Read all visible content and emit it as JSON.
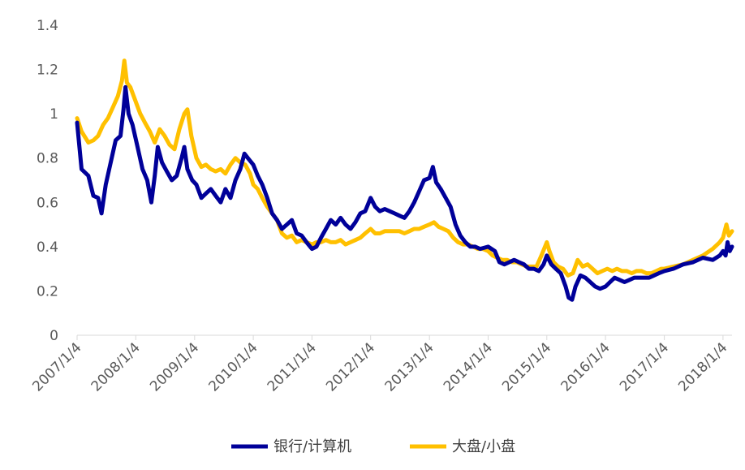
{
  "chart_data": {
    "type": "line",
    "title": "",
    "xlabel": "",
    "ylabel": "",
    "ylim": [
      0,
      1.4
    ],
    "yticks": [
      "0",
      "0.2",
      "0.4",
      "0.6",
      "0.8",
      "1",
      "1.2",
      "1.4"
    ],
    "xlim": [
      "2007/1/4",
      "2018/3/1"
    ],
    "xticks": [
      "2007/1/4",
      "2008/1/4",
      "2009/1/4",
      "2010/1/4",
      "2011/1/4",
      "2012/1/4",
      "2013/1/4",
      "2014/1/4",
      "2015/1/4",
      "2016/1/4",
      "2017/1/4",
      "2018/1/4"
    ],
    "grid": false,
    "legend": "bottom",
    "series": [
      {
        "name": "银行/计算机",
        "color": "#000099",
        "points": [
          [
            "2007/1/4",
            0.96
          ],
          [
            "2007/2/1",
            0.75
          ],
          [
            "2007/3/15",
            0.72
          ],
          [
            "2007/4/15",
            0.63
          ],
          [
            "2007/5/15",
            0.62
          ],
          [
            "2007/6/5",
            0.55
          ],
          [
            "2007/7/1",
            0.68
          ],
          [
            "2007/8/1",
            0.78
          ],
          [
            "2007/9/1",
            0.88
          ],
          [
            "2007/10/1",
            0.9
          ],
          [
            "2007/10/20",
            1.02
          ],
          [
            "2007/11/1",
            1.12
          ],
          [
            "2007/11/20",
            1.0
          ],
          [
            "2007/12/15",
            0.95
          ],
          [
            "2008/1/15",
            0.85
          ],
          [
            "2008/2/15",
            0.75
          ],
          [
            "2008/3/15",
            0.7
          ],
          [
            "2008/4/10",
            0.6
          ],
          [
            "2008/5/1",
            0.72
          ],
          [
            "2008/5/20",
            0.85
          ],
          [
            "2008/6/15",
            0.78
          ],
          [
            "2008/7/15",
            0.74
          ],
          [
            "2008/8/15",
            0.7
          ],
          [
            "2008/9/15",
            0.72
          ],
          [
            "2008/10/15",
            0.8
          ],
          [
            "2008/11/1",
            0.85
          ],
          [
            "2008/11/20",
            0.75
          ],
          [
            "2008/12/20",
            0.7
          ],
          [
            "2009/1/15",
            0.68
          ],
          [
            "2009/2/15",
            0.62
          ],
          [
            "2009/3/15",
            0.64
          ],
          [
            "2009/4/15",
            0.66
          ],
          [
            "2009/5/15",
            0.63
          ],
          [
            "2009/6/15",
            0.6
          ],
          [
            "2009/7/15",
            0.66
          ],
          [
            "2009/8/15",
            0.62
          ],
          [
            "2009/9/15",
            0.7
          ],
          [
            "2009/10/15",
            0.75
          ],
          [
            "2009/11/10",
            0.82
          ],
          [
            "2009/12/1",
            0.8
          ],
          [
            "2010/1/4",
            0.77
          ],
          [
            "2010/2/1",
            0.72
          ],
          [
            "2010/3/1",
            0.68
          ],
          [
            "2010/4/1",
            0.62
          ],
          [
            "2010/5/1",
            0.55
          ],
          [
            "2010/6/1",
            0.52
          ],
          [
            "2010/7/1",
            0.48
          ],
          [
            "2010/8/1",
            0.5
          ],
          [
            "2010/9/1",
            0.52
          ],
          [
            "2010/10/1",
            0.46
          ],
          [
            "2010/11/1",
            0.45
          ],
          [
            "2010/12/1",
            0.42
          ],
          [
            "2011/1/4",
            0.39
          ],
          [
            "2011/2/1",
            0.4
          ],
          [
            "2011/3/1",
            0.44
          ],
          [
            "2011/4/1",
            0.48
          ],
          [
            "2011/5/1",
            0.52
          ],
          [
            "2011/6/1",
            0.5
          ],
          [
            "2011/7/1",
            0.53
          ],
          [
            "2011/8/1",
            0.5
          ],
          [
            "2011/9/1",
            0.48
          ],
          [
            "2011/10/1",
            0.51
          ],
          [
            "2011/11/1",
            0.55
          ],
          [
            "2011/12/1",
            0.56
          ],
          [
            "2012/1/4",
            0.62
          ],
          [
            "2012/2/1",
            0.58
          ],
          [
            "2012/3/1",
            0.56
          ],
          [
            "2012/4/1",
            0.57
          ],
          [
            "2012/5/1",
            0.56
          ],
          [
            "2012/6/1",
            0.55
          ],
          [
            "2012/7/1",
            0.54
          ],
          [
            "2012/8/1",
            0.53
          ],
          [
            "2012/9/1",
            0.56
          ],
          [
            "2012/10/1",
            0.6
          ],
          [
            "2012/11/1",
            0.65
          ],
          [
            "2012/12/1",
            0.7
          ],
          [
            "2013/1/4",
            0.71
          ],
          [
            "2013/1/25",
            0.76
          ],
          [
            "2013/2/15",
            0.69
          ],
          [
            "2013/3/15",
            0.66
          ],
          [
            "2013/4/15",
            0.62
          ],
          [
            "2013/5/15",
            0.58
          ],
          [
            "2013/6/15",
            0.5
          ],
          [
            "2013/7/15",
            0.45
          ],
          [
            "2013/8/15",
            0.42
          ],
          [
            "2013/9/15",
            0.4
          ],
          [
            "2013/10/15",
            0.4
          ],
          [
            "2013/11/15",
            0.39
          ],
          [
            "2014/1/4",
            0.4
          ],
          [
            "2014/2/15",
            0.38
          ],
          [
            "2014/3/15",
            0.33
          ],
          [
            "2014/4/15",
            0.32
          ],
          [
            "2014/5/15",
            0.33
          ],
          [
            "2014/6/15",
            0.34
          ],
          [
            "2014/7/15",
            0.33
          ],
          [
            "2014/8/15",
            0.32
          ],
          [
            "2014/9/15",
            0.3
          ],
          [
            "2014/10/15",
            0.3
          ],
          [
            "2014/11/15",
            0.29
          ],
          [
            "2014/12/15",
            0.32
          ],
          [
            "2015/1/4",
            0.36
          ],
          [
            "2015/2/1",
            0.32
          ],
          [
            "2015/3/1",
            0.3
          ],
          [
            "2015/4/1",
            0.28
          ],
          [
            "2015/5/1",
            0.22
          ],
          [
            "2015/5/20",
            0.17
          ],
          [
            "2015/6/10",
            0.16
          ],
          [
            "2015/7/1",
            0.22
          ],
          [
            "2015/8/1",
            0.27
          ],
          [
            "2015/9/1",
            0.26
          ],
          [
            "2015/10/1",
            0.24
          ],
          [
            "2015/11/1",
            0.22
          ],
          [
            "2015/12/1",
            0.21
          ],
          [
            "2016/1/4",
            0.22
          ],
          [
            "2016/2/1",
            0.24
          ],
          [
            "2016/3/1",
            0.26
          ],
          [
            "2016/4/1",
            0.25
          ],
          [
            "2016/5/1",
            0.24
          ],
          [
            "2016/6/1",
            0.25
          ],
          [
            "2016/7/1",
            0.26
          ],
          [
            "2016/8/1",
            0.26
          ],
          [
            "2016/9/1",
            0.26
          ],
          [
            "2016/10/1",
            0.26
          ],
          [
            "2016/11/1",
            0.27
          ],
          [
            "2016/12/1",
            0.28
          ],
          [
            "2017/1/4",
            0.29
          ],
          [
            "2017/3/1",
            0.3
          ],
          [
            "2017/5/1",
            0.32
          ],
          [
            "2017/7/1",
            0.33
          ],
          [
            "2017/9/1",
            0.35
          ],
          [
            "2017/11/1",
            0.34
          ],
          [
            "2017/12/15",
            0.36
          ],
          [
            "2018/1/4",
            0.38
          ],
          [
            "2018/1/20",
            0.36
          ],
          [
            "2018/2/1",
            0.42
          ],
          [
            "2018/2/15",
            0.38
          ],
          [
            "2018/3/1",
            0.4
          ]
        ]
      },
      {
        "name": "大盘/小盘",
        "color": "#FFC000",
        "points": [
          [
            "2007/1/4",
            0.98
          ],
          [
            "2007/2/1",
            0.92
          ],
          [
            "2007/3/15",
            0.87
          ],
          [
            "2007/4/15",
            0.88
          ],
          [
            "2007/5/15",
            0.9
          ],
          [
            "2007/6/15",
            0.95
          ],
          [
            "2007/7/15",
            0.98
          ],
          [
            "2007/8/15",
            1.03
          ],
          [
            "2007/9/15",
            1.08
          ],
          [
            "2007/10/10",
            1.15
          ],
          [
            "2007/10/25",
            1.24
          ],
          [
            "2007/11/10",
            1.14
          ],
          [
            "2007/12/1",
            1.12
          ],
          [
            "2008/1/1",
            1.06
          ],
          [
            "2008/2/1",
            1.0
          ],
          [
            "2008/3/1",
            0.96
          ],
          [
            "2008/4/1",
            0.92
          ],
          [
            "2008/5/1",
            0.87
          ],
          [
            "2008/6/1",
            0.93
          ],
          [
            "2008/7/1",
            0.9
          ],
          [
            "2008/8/1",
            0.86
          ],
          [
            "2008/9/1",
            0.84
          ],
          [
            "2008/10/1",
            0.93
          ],
          [
            "2008/11/1",
            1.0
          ],
          [
            "2008/11/20",
            1.02
          ],
          [
            "2008/12/15",
            0.9
          ],
          [
            "2009/1/15",
            0.8
          ],
          [
            "2009/2/15",
            0.76
          ],
          [
            "2009/3/15",
            0.77
          ],
          [
            "2009/4/15",
            0.75
          ],
          [
            "2009/5/15",
            0.74
          ],
          [
            "2009/6/15",
            0.75
          ],
          [
            "2009/7/15",
            0.73
          ],
          [
            "2009/8/15",
            0.77
          ],
          [
            "2009/9/15",
            0.8
          ],
          [
            "2009/10/15",
            0.78
          ],
          [
            "2009/11/15",
            0.77
          ],
          [
            "2009/12/15",
            0.73
          ],
          [
            "2010/1/4",
            0.68
          ],
          [
            "2010/2/1",
            0.66
          ],
          [
            "2010/3/1",
            0.62
          ],
          [
            "2010/4/1",
            0.58
          ],
          [
            "2010/5/1",
            0.55
          ],
          [
            "2010/6/1",
            0.52
          ],
          [
            "2010/7/1",
            0.46
          ],
          [
            "2010/8/1",
            0.44
          ],
          [
            "2010/9/1",
            0.45
          ],
          [
            "2010/10/1",
            0.42
          ],
          [
            "2010/11/1",
            0.43
          ],
          [
            "2010/12/1",
            0.42
          ],
          [
            "2011/1/4",
            0.41
          ],
          [
            "2011/2/1",
            0.42
          ],
          [
            "2011/3/1",
            0.42
          ],
          [
            "2011/4/1",
            0.43
          ],
          [
            "2011/5/1",
            0.42
          ],
          [
            "2011/6/1",
            0.42
          ],
          [
            "2011/7/1",
            0.43
          ],
          [
            "2011/8/1",
            0.41
          ],
          [
            "2011/9/1",
            0.42
          ],
          [
            "2011/10/1",
            0.43
          ],
          [
            "2011/11/1",
            0.44
          ],
          [
            "2011/12/1",
            0.46
          ],
          [
            "2012/1/4",
            0.48
          ],
          [
            "2012/2/1",
            0.46
          ],
          [
            "2012/3/1",
            0.46
          ],
          [
            "2012/4/1",
            0.47
          ],
          [
            "2012/5/1",
            0.47
          ],
          [
            "2012/6/1",
            0.47
          ],
          [
            "2012/7/1",
            0.47
          ],
          [
            "2012/8/1",
            0.46
          ],
          [
            "2012/9/1",
            0.47
          ],
          [
            "2012/10/1",
            0.48
          ],
          [
            "2012/11/1",
            0.48
          ],
          [
            "2012/12/1",
            0.49
          ],
          [
            "2013/1/4",
            0.5
          ],
          [
            "2013/2/1",
            0.51
          ],
          [
            "2013/3/1",
            0.49
          ],
          [
            "2013/4/1",
            0.48
          ],
          [
            "2013/5/1",
            0.47
          ],
          [
            "2013/6/1",
            0.44
          ],
          [
            "2013/7/1",
            0.42
          ],
          [
            "2013/8/1",
            0.41
          ],
          [
            "2013/9/1",
            0.41
          ],
          [
            "2013/10/1",
            0.4
          ],
          [
            "2013/11/1",
            0.39
          ],
          [
            "2013/12/1",
            0.39
          ],
          [
            "2014/1/4",
            0.38
          ],
          [
            "2014/2/1",
            0.36
          ],
          [
            "2014/3/1",
            0.35
          ],
          [
            "2014/4/1",
            0.34
          ],
          [
            "2014/5/1",
            0.34
          ],
          [
            "2014/6/1",
            0.33
          ],
          [
            "2014/7/1",
            0.33
          ],
          [
            "2014/8/1",
            0.32
          ],
          [
            "2014/9/1",
            0.31
          ],
          [
            "2014/10/1",
            0.31
          ],
          [
            "2014/11/1",
            0.31
          ],
          [
            "2014/12/1",
            0.36
          ],
          [
            "2015/1/4",
            0.42
          ],
          [
            "2015/1/20",
            0.38
          ],
          [
            "2015/2/15",
            0.33
          ],
          [
            "2015/3/15",
            0.31
          ],
          [
            "2015/4/15",
            0.3
          ],
          [
            "2015/5/15",
            0.27
          ],
          [
            "2015/6/15",
            0.28
          ],
          [
            "2015/7/15",
            0.34
          ],
          [
            "2015/8/15",
            0.31
          ],
          [
            "2015/9/15",
            0.32
          ],
          [
            "2015/10/15",
            0.3
          ],
          [
            "2015/11/15",
            0.28
          ],
          [
            "2015/12/15",
            0.29
          ],
          [
            "2016/1/15",
            0.3
          ],
          [
            "2016/2/15",
            0.29
          ],
          [
            "2016/3/15",
            0.3
          ],
          [
            "2016/4/15",
            0.29
          ],
          [
            "2016/5/15",
            0.29
          ],
          [
            "2016/6/15",
            0.28
          ],
          [
            "2016/7/15",
            0.29
          ],
          [
            "2016/8/15",
            0.29
          ],
          [
            "2016/9/15",
            0.28
          ],
          [
            "2016/10/15",
            0.28
          ],
          [
            "2016/11/15",
            0.29
          ],
          [
            "2016/12/15",
            0.3
          ],
          [
            "2017/1/4",
            0.3
          ],
          [
            "2017/3/1",
            0.31
          ],
          [
            "2017/5/1",
            0.32
          ],
          [
            "2017/7/1",
            0.34
          ],
          [
            "2017/9/1",
            0.36
          ],
          [
            "2017/11/1",
            0.39
          ],
          [
            "2017/12/15",
            0.42
          ],
          [
            "2018/1/4",
            0.44
          ],
          [
            "2018/1/25",
            0.5
          ],
          [
            "2018/2/10",
            0.45
          ],
          [
            "2018/3/1",
            0.47
          ]
        ]
      }
    ]
  }
}
